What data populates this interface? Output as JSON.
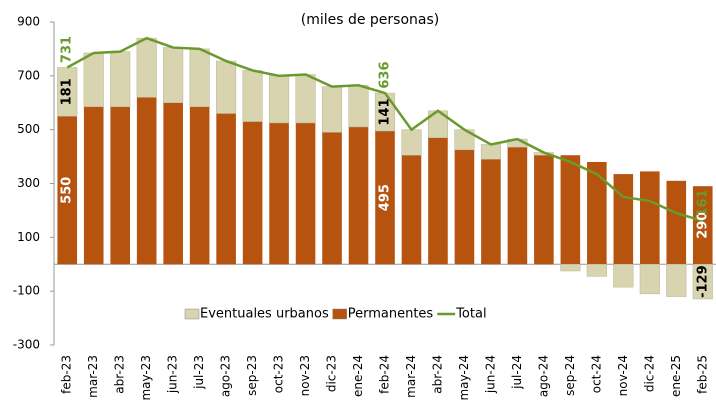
{
  "chart_data": {
    "type": "stacked-bar-line",
    "title": "(miles de personas)",
    "categories": [
      "feb-23",
      "mar-23",
      "abr-23",
      "may-23",
      "jun-23",
      "jul-23",
      "ago-23",
      "sep-23",
      "oct-23",
      "nov-23",
      "dic-23",
      "ene-24",
      "feb-24",
      "mar-24",
      "abr-24",
      "may-24",
      "jun-24",
      "jul-24",
      "ago-24",
      "sep-24",
      "oct-24",
      "nov-24",
      "dic-24",
      "ene-25",
      "feb-25"
    ],
    "series": [
      {
        "name": "Eventuales urbanos",
        "color": "#d9d4b0",
        "kind": "bar",
        "values": [
          181,
          200,
          205,
          220,
          205,
          215,
          195,
          190,
          175,
          180,
          170,
          155,
          141,
          95,
          100,
          75,
          55,
          30,
          10,
          -25,
          -45,
          -85,
          -110,
          -120,
          -129
        ],
        "value_labels": [
          "181",
          null,
          null,
          null,
          null,
          null,
          null,
          null,
          null,
          null,
          null,
          null,
          "141",
          null,
          null,
          null,
          null,
          null,
          null,
          null,
          null,
          null,
          null,
          null,
          "-129"
        ]
      },
      {
        "name": "Permanentes",
        "color": "#b5530f",
        "kind": "bar",
        "values": [
          550,
          585,
          585,
          620,
          600,
          585,
          560,
          530,
          525,
          525,
          490,
          510,
          495,
          405,
          470,
          425,
          390,
          435,
          405,
          405,
          380,
          335,
          345,
          310,
          290
        ],
        "value_labels": [
          "550",
          null,
          null,
          null,
          null,
          null,
          null,
          null,
          null,
          null,
          null,
          null,
          "495",
          null,
          null,
          null,
          null,
          null,
          null,
          null,
          null,
          null,
          null,
          null,
          "290"
        ]
      },
      {
        "name": "Total",
        "color": "#6a9a2e",
        "kind": "line",
        "values": [
          731,
          785,
          790,
          840,
          805,
          800,
          755,
          720,
          700,
          705,
          660,
          665,
          636,
          500,
          570,
          500,
          445,
          465,
          415,
          380,
          335,
          250,
          235,
          190,
          161
        ],
        "value_labels": [
          "731",
          null,
          null,
          null,
          null,
          null,
          null,
          null,
          null,
          null,
          null,
          null,
          "636",
          null,
          null,
          null,
          null,
          null,
          null,
          null,
          null,
          null,
          null,
          null,
          "161"
        ]
      }
    ],
    "ylim": [
      -300,
      900
    ],
    "yticks": [
      -300,
      -100,
      100,
      300,
      500,
      700,
      900
    ],
    "grid": false
  }
}
